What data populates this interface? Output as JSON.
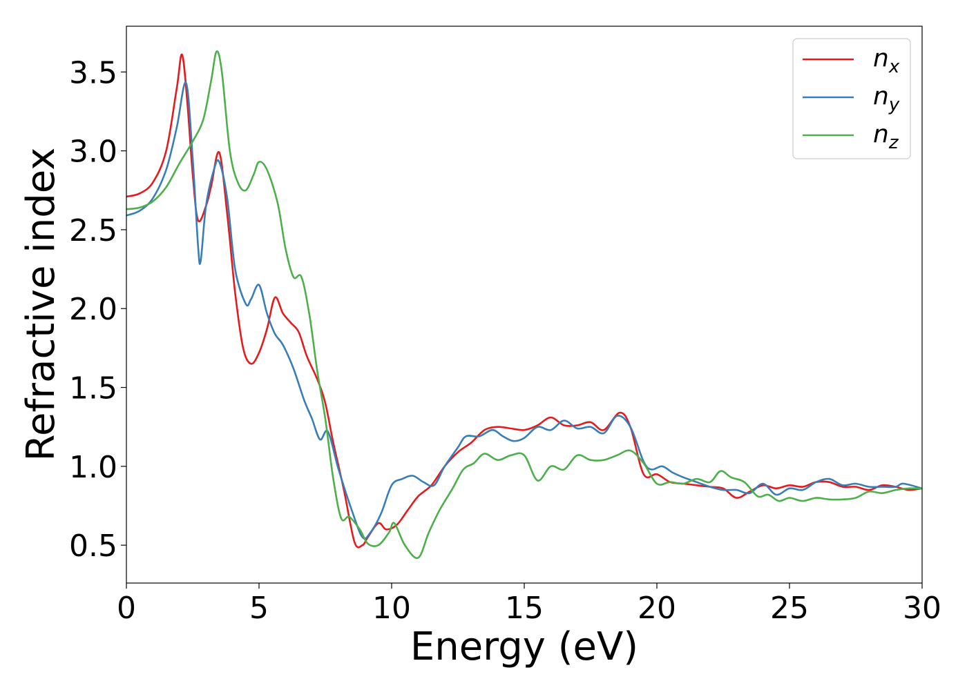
{
  "chart_data": {
    "type": "line",
    "xlabel": "Energy (eV)",
    "ylabel": "Refractive index",
    "xlim": [
      0,
      30
    ],
    "ylim": [
      0.26,
      3.79
    ],
    "xticks": [
      0,
      5,
      10,
      15,
      20,
      25,
      30
    ],
    "xtick_labels": [
      "0",
      "5",
      "10",
      "15",
      "20",
      "25",
      "30"
    ],
    "yticks": [
      0.5,
      1.0,
      1.5,
      2.0,
      2.5,
      3.0,
      3.5
    ],
    "ytick_labels": [
      "0.5",
      "1.0",
      "1.5",
      "2.0",
      "2.5",
      "3.0",
      "3.5"
    ],
    "grid": false,
    "legend_position": "top-right",
    "series": [
      {
        "name": "n_x",
        "label_base": "n",
        "label_sub": "x",
        "color": "#e41a1c",
        "points": [
          [
            0,
            2.71
          ],
          [
            0.5,
            2.73
          ],
          [
            1.0,
            2.8
          ],
          [
            1.5,
            3.0
          ],
          [
            1.9,
            3.4
          ],
          [
            2.1,
            3.61
          ],
          [
            2.3,
            3.3
          ],
          [
            2.5,
            2.85
          ],
          [
            2.7,
            2.56
          ],
          [
            3.0,
            2.65
          ],
          [
            3.2,
            2.78
          ],
          [
            3.5,
            2.99
          ],
          [
            3.8,
            2.6
          ],
          [
            4.1,
            2.1
          ],
          [
            4.4,
            1.75
          ],
          [
            4.7,
            1.65
          ],
          [
            5.0,
            1.72
          ],
          [
            5.3,
            1.87
          ],
          [
            5.6,
            2.07
          ],
          [
            5.9,
            1.97
          ],
          [
            6.2,
            1.91
          ],
          [
            6.5,
            1.85
          ],
          [
            6.8,
            1.7
          ],
          [
            7.2,
            1.55
          ],
          [
            7.5,
            1.4
          ],
          [
            7.8,
            1.15
          ],
          [
            8.2,
            0.85
          ],
          [
            8.6,
            0.52
          ],
          [
            8.9,
            0.5
          ],
          [
            9.1,
            0.55
          ],
          [
            9.5,
            0.64
          ],
          [
            9.8,
            0.6
          ],
          [
            10.2,
            0.63
          ],
          [
            10.6,
            0.72
          ],
          [
            11.0,
            0.81
          ],
          [
            11.5,
            0.88
          ],
          [
            12.0,
            1.0
          ],
          [
            12.5,
            1.09
          ],
          [
            13.0,
            1.15
          ],
          [
            13.5,
            1.23
          ],
          [
            14.0,
            1.25
          ],
          [
            14.5,
            1.24
          ],
          [
            15.0,
            1.23
          ],
          [
            15.5,
            1.26
          ],
          [
            16.0,
            1.31
          ],
          [
            16.5,
            1.26
          ],
          [
            17.0,
            1.26
          ],
          [
            17.5,
            1.28
          ],
          [
            18.0,
            1.23
          ],
          [
            18.6,
            1.34
          ],
          [
            19.0,
            1.25
          ],
          [
            19.5,
            0.95
          ],
          [
            20.0,
            0.95
          ],
          [
            20.5,
            0.9
          ],
          [
            21.0,
            0.89
          ],
          [
            21.5,
            0.88
          ],
          [
            22.0,
            0.87
          ],
          [
            22.5,
            0.86
          ],
          [
            23.0,
            0.8
          ],
          [
            23.5,
            0.84
          ],
          [
            24.0,
            0.88
          ],
          [
            24.5,
            0.86
          ],
          [
            25.0,
            0.88
          ],
          [
            25.5,
            0.87
          ],
          [
            26.0,
            0.9
          ],
          [
            26.5,
            0.9
          ],
          [
            27.0,
            0.87
          ],
          [
            27.5,
            0.87
          ],
          [
            28.0,
            0.85
          ],
          [
            28.5,
            0.88
          ],
          [
            29.0,
            0.87
          ],
          [
            29.5,
            0.85
          ],
          [
            30.0,
            0.86
          ]
        ]
      },
      {
        "name": "n_y",
        "label_base": "n",
        "label_sub": "y",
        "color": "#377eb8",
        "points": [
          [
            0,
            2.59
          ],
          [
            0.5,
            2.62
          ],
          [
            1.0,
            2.7
          ],
          [
            1.5,
            2.88
          ],
          [
            1.9,
            3.15
          ],
          [
            2.25,
            3.43
          ],
          [
            2.5,
            2.95
          ],
          [
            2.7,
            2.4
          ],
          [
            2.8,
            2.3
          ],
          [
            3.0,
            2.65
          ],
          [
            3.3,
            2.88
          ],
          [
            3.5,
            2.93
          ],
          [
            3.8,
            2.7
          ],
          [
            4.1,
            2.25
          ],
          [
            4.5,
            2.03
          ],
          [
            4.7,
            2.06
          ],
          [
            5.0,
            2.15
          ],
          [
            5.3,
            1.97
          ],
          [
            5.6,
            1.84
          ],
          [
            5.9,
            1.77
          ],
          [
            6.3,
            1.62
          ],
          [
            6.7,
            1.42
          ],
          [
            7.0,
            1.3
          ],
          [
            7.3,
            1.17
          ],
          [
            7.6,
            1.22
          ],
          [
            8.0,
            0.98
          ],
          [
            8.5,
            0.72
          ],
          [
            8.9,
            0.55
          ],
          [
            9.2,
            0.58
          ],
          [
            9.6,
            0.7
          ],
          [
            10.0,
            0.88
          ],
          [
            10.4,
            0.92
          ],
          [
            10.8,
            0.94
          ],
          [
            11.2,
            0.9
          ],
          [
            11.6,
            0.88
          ],
          [
            12.0,
            1.0
          ],
          [
            12.5,
            1.12
          ],
          [
            12.8,
            1.19
          ],
          [
            13.3,
            1.19
          ],
          [
            13.8,
            1.23
          ],
          [
            14.2,
            1.19
          ],
          [
            14.6,
            1.16
          ],
          [
            15.0,
            1.18
          ],
          [
            15.5,
            1.25
          ],
          [
            16.0,
            1.23
          ],
          [
            16.5,
            1.29
          ],
          [
            17.0,
            1.24
          ],
          [
            17.5,
            1.25
          ],
          [
            18.0,
            1.21
          ],
          [
            18.5,
            1.32
          ],
          [
            19.0,
            1.25
          ],
          [
            19.5,
            1.03
          ],
          [
            19.8,
            0.98
          ],
          [
            20.2,
            1.0
          ],
          [
            20.6,
            0.96
          ],
          [
            21.0,
            0.93
          ],
          [
            21.5,
            0.9
          ],
          [
            22.0,
            0.87
          ],
          [
            22.5,
            0.85
          ],
          [
            23.0,
            0.85
          ],
          [
            23.5,
            0.83
          ],
          [
            24.0,
            0.89
          ],
          [
            24.5,
            0.82
          ],
          [
            25.0,
            0.86
          ],
          [
            25.5,
            0.85
          ],
          [
            26.0,
            0.9
          ],
          [
            26.5,
            0.92
          ],
          [
            27.0,
            0.88
          ],
          [
            27.5,
            0.89
          ],
          [
            28.0,
            0.87
          ],
          [
            28.5,
            0.87
          ],
          [
            29.0,
            0.87
          ],
          [
            29.3,
            0.89
          ],
          [
            30.0,
            0.86
          ]
        ]
      },
      {
        "name": "n_z",
        "label_base": "n",
        "label_sub": "z",
        "color": "#4daf4a",
        "points": [
          [
            0,
            2.63
          ],
          [
            0.5,
            2.64
          ],
          [
            1.0,
            2.68
          ],
          [
            1.5,
            2.77
          ],
          [
            2.0,
            2.92
          ],
          [
            2.5,
            3.06
          ],
          [
            2.9,
            3.2
          ],
          [
            3.2,
            3.45
          ],
          [
            3.4,
            3.63
          ],
          [
            3.6,
            3.5
          ],
          [
            3.9,
            3.0
          ],
          [
            4.2,
            2.8
          ],
          [
            4.5,
            2.75
          ],
          [
            4.8,
            2.85
          ],
          [
            5.0,
            2.93
          ],
          [
            5.3,
            2.88
          ],
          [
            5.7,
            2.67
          ],
          [
            6.0,
            2.38
          ],
          [
            6.3,
            2.2
          ],
          [
            6.6,
            2.2
          ],
          [
            6.9,
            1.96
          ],
          [
            7.2,
            1.6
          ],
          [
            7.5,
            1.3
          ],
          [
            7.8,
            0.92
          ],
          [
            8.1,
            0.67
          ],
          [
            8.4,
            0.68
          ],
          [
            8.8,
            0.6
          ],
          [
            9.1,
            0.51
          ],
          [
            9.5,
            0.5
          ],
          [
            9.9,
            0.58
          ],
          [
            10.1,
            0.64
          ],
          [
            10.5,
            0.5
          ],
          [
            11.0,
            0.42
          ],
          [
            11.4,
            0.58
          ],
          [
            11.8,
            0.72
          ],
          [
            12.3,
            0.86
          ],
          [
            12.7,
            0.98
          ],
          [
            13.1,
            1.02
          ],
          [
            13.5,
            1.08
          ],
          [
            14.0,
            1.04
          ],
          [
            14.5,
            1.07
          ],
          [
            15.0,
            1.07
          ],
          [
            15.5,
            0.91
          ],
          [
            16.0,
            1.0
          ],
          [
            16.5,
            0.98
          ],
          [
            17.0,
            1.07
          ],
          [
            17.5,
            1.04
          ],
          [
            18.0,
            1.04
          ],
          [
            18.5,
            1.07
          ],
          [
            19.0,
            1.1
          ],
          [
            19.5,
            1.02
          ],
          [
            20.0,
            0.89
          ],
          [
            20.5,
            0.9
          ],
          [
            21.0,
            0.89
          ],
          [
            21.5,
            0.92
          ],
          [
            22.0,
            0.9
          ],
          [
            22.4,
            0.97
          ],
          [
            22.8,
            0.93
          ],
          [
            23.3,
            0.9
          ],
          [
            23.8,
            0.81
          ],
          [
            24.2,
            0.82
          ],
          [
            24.6,
            0.78
          ],
          [
            25.0,
            0.8
          ],
          [
            25.5,
            0.78
          ],
          [
            26.0,
            0.8
          ],
          [
            26.5,
            0.79
          ],
          [
            27.0,
            0.79
          ],
          [
            27.5,
            0.8
          ],
          [
            28.0,
            0.84
          ],
          [
            28.5,
            0.83
          ],
          [
            29.0,
            0.85
          ],
          [
            29.5,
            0.86
          ],
          [
            30.0,
            0.86
          ]
        ]
      }
    ]
  }
}
